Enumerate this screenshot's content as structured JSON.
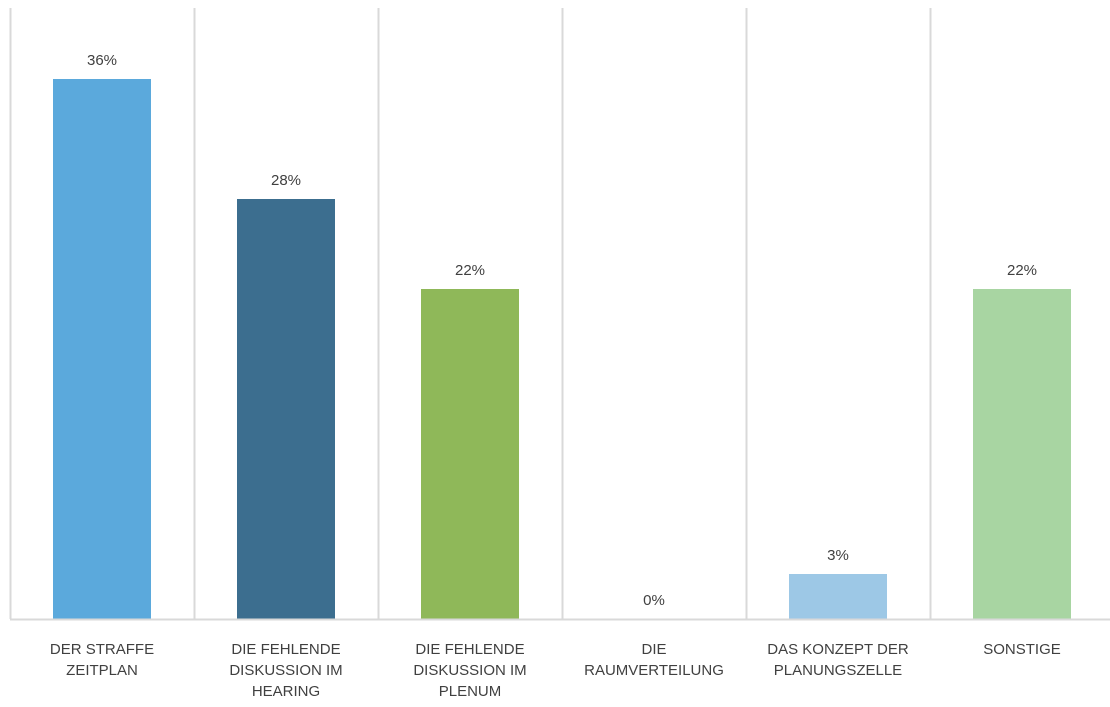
{
  "chart_data": {
    "type": "bar",
    "categories": [
      [
        "DER STRAFFE",
        "ZEITPLAN"
      ],
      [
        "DIE FEHLENDE",
        "DISKUSSION IM",
        "HEARING"
      ],
      [
        "DIE FEHLENDE",
        "DISKUSSION IM",
        "PLENUM"
      ],
      [
        "DIE",
        "RAUMVERTEILUNG"
      ],
      [
        "DAS KONZEPT DER",
        "PLANUNGSZELLE"
      ],
      [
        "SONSTIGE"
      ]
    ],
    "values": [
      36,
      28,
      22,
      0,
      3,
      22
    ],
    "value_labels": [
      "36%",
      "28%",
      "22%",
      "0%",
      "3%",
      "22%"
    ],
    "unit": "%",
    "ylim": [
      0,
      40
    ],
    "colors": [
      "#5BA9DC",
      "#3C6E8F",
      "#8FB859",
      "#5BA9DC",
      "#9DC8E6",
      "#A8D5A2"
    ],
    "grid": "vertical separators between categories",
    "legend": "none",
    "title": "",
    "xlabel": "",
    "ylabel": ""
  }
}
